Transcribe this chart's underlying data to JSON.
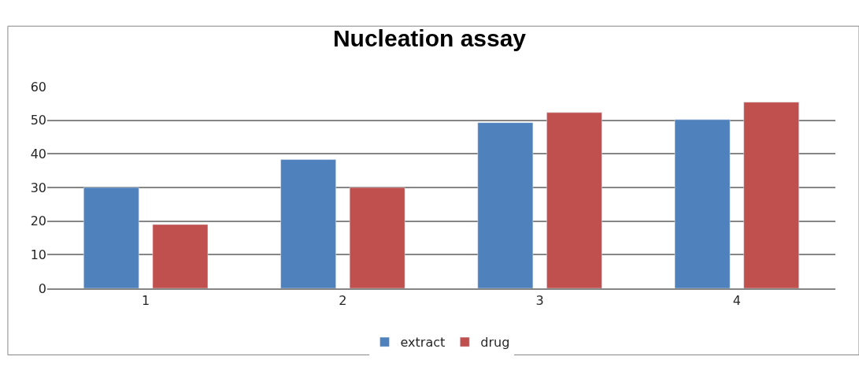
{
  "chart_data": {
    "type": "bar",
    "title": "Nucleation assay",
    "categories": [
      "1",
      "2",
      "3",
      "4"
    ],
    "series": [
      {
        "name": "extract",
        "color": "#4f81bd",
        "values": [
          30,
          38.3,
          49.3,
          50.2
        ]
      },
      {
        "name": "drug",
        "color": "#c0504d",
        "values": [
          19,
          30,
          52.3,
          55.4
        ]
      }
    ],
    "ylim": [
      0,
      60
    ],
    "yticks": [
      0,
      10,
      20,
      30,
      40,
      50,
      60
    ],
    "grid": "y",
    "legend": "bottom"
  }
}
